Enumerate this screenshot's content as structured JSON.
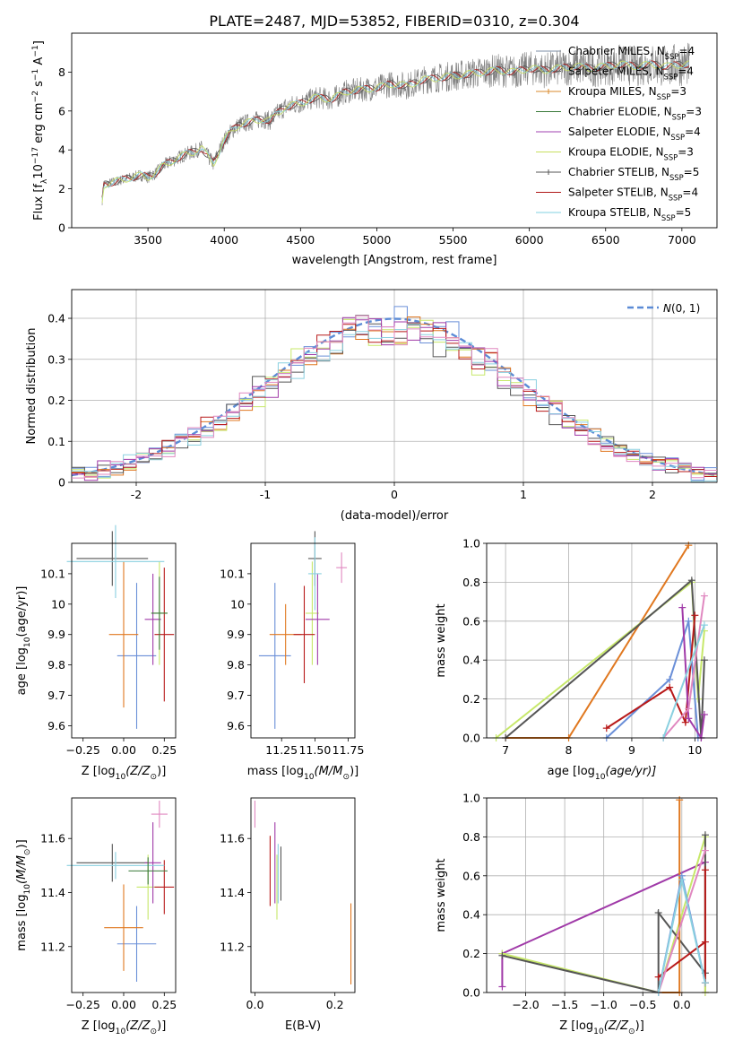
{
  "figure_title": "PLATE=2487, MJD=53852, FIBERID=0310, z=0.304",
  "colors": {
    "Chabrier MILES": "#7b8ea6",
    "Salpeter MILES": "#555555",
    "Kroupa MILES": "#d98a2b",
    "Chabrier ELODIE": "#3a7a3a",
    "Salpeter ELODIE": "#a040b0",
    "Kroupa ELODIE": "#c8e060",
    "Chabrier STELIB": "#555555",
    "Salpeter STELIB": "#b01818",
    "Kroupa STELIB": "#80d0e0",
    "spectrum": "#7f7f7f",
    "hist_set": [
      "#6a8fd8",
      "#e07820",
      "#c7e86a",
      "#555555",
      "#a03aa8",
      "#b81a1a",
      "#8ad0e0",
      "#e088c0"
    ],
    "gaussian": "#5b8bd6"
  },
  "chart_data": [
    {
      "id": "spectrum",
      "type": "line",
      "xlabel": "wavelength [Angstrom, rest frame]",
      "ylabel": "Flux [f",
      "ylabel_sub": "λ",
      "ylabel_rest": "10",
      "ylabel_exp": "−17",
      "ylabel_unit": " erg cm",
      "ylabel_unit_exp": "−2",
      "ylabel_s": " s",
      "ylabel_s_exp": "−1",
      "ylabel_A": " A",
      "ylabel_A_exp": "−1",
      "ylabel_close": "]",
      "xlim": [
        3000,
        7230
      ],
      "ylim": [
        0,
        10
      ],
      "xticks": [
        3500,
        4000,
        4500,
        5000,
        5500,
        6000,
        6500,
        7000
      ],
      "yticks": [
        0,
        2,
        4,
        6,
        8
      ],
      "legend_position": "right",
      "legend": [
        {
          "model": "Chabrier MILES",
          "n": "4"
        },
        {
          "model": "Salpeter MILES",
          "n": "4"
        },
        {
          "model": "Kroupa MILES",
          "n": "3"
        },
        {
          "model": "Chabrier ELODIE",
          "n": "3"
        },
        {
          "model": "Salpeter ELODIE",
          "n": "4"
        },
        {
          "model": "Kroupa ELODIE",
          "n": "3"
        },
        {
          "model": "Chabrier STELIB",
          "n": "5"
        },
        {
          "model": "Salpeter STELIB",
          "n": "4"
        },
        {
          "model": "Kroupa STELIB",
          "n": "5"
        }
      ],
      "legend_suffix_main": ", N",
      "legend_suffix_sub": "SSP",
      "legend_eq": "=",
      "x": [
        3200,
        3210,
        3250,
        3300,
        3350,
        3400,
        3450,
        3500,
        3550,
        3600,
        3650,
        3700,
        3750,
        3800,
        3850,
        3900,
        3930,
        3960,
        4000,
        4050,
        4100,
        4150,
        4200,
        4250,
        4300,
        4350,
        4400,
        4450,
        4500,
        4600,
        4700,
        4800,
        4900,
        5000,
        5100,
        5200,
        5300,
        5400,
        5500,
        5600,
        5700,
        5800,
        5900,
        6000,
        6100,
        6200,
        6300,
        6400,
        6500,
        6600,
        6700,
        6800,
        6900,
        7000,
        7050
      ],
      "y": [
        1.4,
        2.2,
        2.3,
        2.4,
        2.5,
        2.6,
        2.7,
        2.6,
        2.8,
        3.2,
        3.4,
        3.6,
        3.8,
        3.9,
        4.1,
        3.6,
        3.3,
        3.8,
        4.5,
        5.0,
        5.3,
        5.4,
        5.5,
        5.6,
        5.5,
        5.9,
        6.2,
        6.3,
        6.4,
        6.7,
        6.6,
        7.0,
        7.1,
        7.2,
        7.4,
        7.3,
        7.6,
        7.7,
        7.8,
        7.9,
        8.0,
        8.1,
        8.0,
        8.2,
        8.1,
        8.2,
        8.3,
        8.2,
        8.3,
        8.4,
        8.3,
        8.4,
        8.3,
        8.4,
        8.4
      ]
    },
    {
      "id": "residuals",
      "type": "histogram",
      "xlabel": "(data-model)/error",
      "ylabel": "Normed distribution",
      "xlim": [
        -2.5,
        2.5
      ],
      "ylim": [
        0,
        0.47
      ],
      "xticks": [
        -2,
        -1,
        0,
        1,
        2
      ],
      "yticks": [
        0.0,
        0.1,
        0.2,
        0.3,
        0.4
      ],
      "grid": true,
      "legend_position": "top-right",
      "legend_label": "N(0,1)",
      "bin_edges_start": -2.5,
      "bin_width": 0.1
    },
    {
      "id": "age-vs-Z",
      "type": "scatter",
      "xlabel": "Z [log",
      "xlabel_sub": "10",
      "xlabel_rest": "(Z/Z",
      "xlabel_sun": "⊙",
      "xlabel_close": ")]",
      "ylabel": "age  [log",
      "ylabel_sub": "10",
      "ylabel_rest": "(age/yr)]",
      "xlim": [
        -0.32,
        0.32
      ],
      "ylim": [
        9.56,
        10.2
      ],
      "xticks": [
        -0.25,
        0.0,
        0.25
      ],
      "xticklabels": [
        "−0.25",
        "0.00",
        "0.25"
      ],
      "yticks": [
        9.6,
        9.7,
        9.8,
        9.9,
        10.0,
        10.1
      ],
      "points": [
        {
          "x": 0.08,
          "y": 9.83,
          "xerr": 0.12,
          "yerr": 0.24,
          "color": "#6a8fd8"
        },
        {
          "x": 0.0,
          "y": 9.9,
          "xerr": 0.09,
          "yerr": 0.24,
          "color": "#e07820"
        },
        {
          "x": 0.22,
          "y": 9.97,
          "xerr": 0.05,
          "yerr": 0.17,
          "color": "#c7e86a"
        },
        {
          "x": -0.07,
          "y": 10.15,
          "xerr": 0.22,
          "yerr": 0.09,
          "color": "#555555"
        },
        {
          "x": 0.18,
          "y": 9.95,
          "xerr": 0.05,
          "yerr": 0.15,
          "color": "#a03aa8"
        },
        {
          "x": 0.25,
          "y": 9.9,
          "xerr": 0.06,
          "yerr": 0.22,
          "color": "#b81a1a"
        },
        {
          "x": -0.05,
          "y": 10.14,
          "xerr": 0.3,
          "yerr": 0.12,
          "color": "#8ad0e0"
        },
        {
          "x": 0.22,
          "y": 9.97,
          "xerr": 0.05,
          "yerr": 0.12,
          "color": "#3a7a3a"
        }
      ]
    },
    {
      "id": "age-vs-mass",
      "type": "scatter",
      "xlabel": "mass [log",
      "xlabel_sub": "10",
      "xlabel_rest": "(M/M",
      "xlabel_sun": "⊙",
      "xlabel_close": ")]",
      "xlim": [
        11.02,
        11.8
      ],
      "ylim": [
        9.56,
        10.2
      ],
      "xticks": [
        11.25,
        11.5,
        11.75
      ],
      "xticklabels": [
        "11.25",
        "11.50",
        "11.75"
      ],
      "yticks": [
        9.6,
        9.7,
        9.8,
        9.9,
        10.0,
        10.1
      ],
      "points": [
        {
          "x": 11.2,
          "y": 9.83,
          "xerr": 0.12,
          "yerr": 0.24,
          "color": "#6a8fd8"
        },
        {
          "x": 11.28,
          "y": 9.9,
          "xerr": 0.12,
          "yerr": 0.1,
          "color": "#e07820"
        },
        {
          "x": 11.48,
          "y": 9.97,
          "xerr": 0.05,
          "yerr": 0.17,
          "color": "#c7e86a"
        },
        {
          "x": 11.5,
          "y": 10.15,
          "xerr": 0.05,
          "yerr": 0.09,
          "color": "#555555"
        },
        {
          "x": 11.52,
          "y": 9.95,
          "xerr": 0.09,
          "yerr": 0.15,
          "color": "#a03aa8"
        },
        {
          "x": 11.42,
          "y": 9.9,
          "xerr": 0.08,
          "yerr": 0.16,
          "color": "#b81a1a"
        },
        {
          "x": 11.5,
          "y": 10.1,
          "xerr": 0.05,
          "yerr": 0.12,
          "color": "#8ad0e0"
        },
        {
          "x": 11.7,
          "y": 10.12,
          "xerr": 0.04,
          "yerr": 0.05,
          "color": "#e088c0"
        }
      ]
    },
    {
      "id": "mass-weight-vs-age",
      "type": "line",
      "xlabel": "age  [log",
      "xlabel_sub": "10",
      "xlabel_rest": "(age/yr)]",
      "ylabel": "mass weight",
      "xlim": [
        6.7,
        10.35
      ],
      "ylim": [
        0,
        1
      ],
      "xticks": [
        7,
        8,
        9,
        10
      ],
      "yticks": [
        0.0,
        0.2,
        0.4,
        0.6,
        0.8,
        1.0
      ],
      "yticklabels": [
        "0.0",
        "0.2",
        "0.4",
        "0.6",
        "0.8",
        "1.0"
      ],
      "grid": true,
      "series": [
        {
          "color": "#e07820",
          "x": [
            7.0,
            8.0,
            9.9
          ],
          "y": [
            0.0,
            0.0,
            0.99
          ]
        },
        {
          "color": "#c7e86a",
          "x": [
            6.85,
            9.95,
            10.05,
            10.15
          ],
          "y": [
            0.0,
            0.8,
            0.2,
            0.55
          ]
        },
        {
          "color": "#555555",
          "x": [
            7.0,
            9.95,
            10.1,
            10.15
          ],
          "y": [
            0.0,
            0.81,
            0.0,
            0.4
          ]
        },
        {
          "color": "#6a8fd8",
          "x": [
            8.6,
            9.6,
            9.9,
            10.05
          ],
          "y": [
            0.0,
            0.3,
            0.6,
            0.0
          ]
        },
        {
          "color": "#b81a1a",
          "x": [
            8.6,
            9.6,
            9.85,
            10.0
          ],
          "y": [
            0.05,
            0.26,
            0.08,
            0.63
          ]
        },
        {
          "color": "#a03aa8",
          "x": [
            9.8,
            9.9,
            10.1,
            10.15
          ],
          "y": [
            0.67,
            0.1,
            0.0,
            0.12
          ]
        },
        {
          "color": "#e088c0",
          "x": [
            9.5,
            9.9,
            10.15
          ],
          "y": [
            0.0,
            0.15,
            0.73
          ]
        },
        {
          "color": "#8ad0e0",
          "x": [
            9.5,
            10.15
          ],
          "y": [
            0.0,
            0.58
          ]
        }
      ]
    },
    {
      "id": "mass-vs-Z",
      "type": "scatter",
      "xlabel": "Z [log",
      "xlabel_sub": "10",
      "xlabel_rest": "(Z/Z",
      "xlabel_sun": "⊙",
      "xlabel_close": ")]",
      "ylabel": "mass [log",
      "ylabel_sub": "10",
      "ylabel_rest": "(M/M",
      "ylabel_sun": "⊙",
      "ylabel_close": ")]",
      "xlim": [
        -0.32,
        0.32
      ],
      "ylim": [
        11.03,
        11.75
      ],
      "xticks": [
        -0.25,
        0.0,
        0.25
      ],
      "xticklabels": [
        "−0.25",
        "0.00",
        "0.25"
      ],
      "yticks": [
        11.2,
        11.4,
        11.6
      ],
      "points": [
        {
          "x": 0.08,
          "y": 11.21,
          "xerr": 0.12,
          "yerr": 0.14,
          "color": "#6a8fd8"
        },
        {
          "x": 0.0,
          "y": 11.27,
          "xerr": 0.12,
          "yerr": 0.16,
          "color": "#e07820"
        },
        {
          "x": 0.15,
          "y": 11.42,
          "xerr": 0.07,
          "yerr": 0.12,
          "color": "#c7e86a"
        },
        {
          "x": -0.07,
          "y": 11.51,
          "xerr": 0.22,
          "yerr": 0.07,
          "color": "#555555"
        },
        {
          "x": 0.18,
          "y": 11.51,
          "xerr": 0.05,
          "yerr": 0.15,
          "color": "#a03aa8"
        },
        {
          "x": 0.25,
          "y": 11.42,
          "xerr": 0.06,
          "yerr": 0.1,
          "color": "#b81a1a"
        },
        {
          "x": -0.05,
          "y": 11.5,
          "xerr": 0.3,
          "yerr": 0.05,
          "color": "#8ad0e0"
        },
        {
          "x": 0.22,
          "y": 11.69,
          "xerr": 0.05,
          "yerr": 0.05,
          "color": "#e088c0"
        },
        {
          "x": 0.15,
          "y": 11.48,
          "xerr": 0.12,
          "yerr": 0.05,
          "color": "#3a7a3a"
        }
      ]
    },
    {
      "id": "mass-vs-ebv",
      "type": "scatter",
      "xlabel": "E(B-V)",
      "xlim": [
        -0.01,
        0.25
      ],
      "ylim": [
        11.03,
        11.75
      ],
      "xticks": [
        0.0,
        0.2
      ],
      "xticklabels": [
        "0.0",
        "0.2"
      ],
      "yticks": [
        11.2,
        11.4,
        11.6
      ],
      "points": [
        {
          "x": 0.0,
          "y": 11.69,
          "xerr": 0.0,
          "yerr": 0.05,
          "color": "#e088c0"
        },
        {
          "x": 0.038,
          "y": 11.48,
          "xerr": 0.0,
          "yerr": 0.13,
          "color": "#b81a1a"
        },
        {
          "x": 0.05,
          "y": 11.51,
          "xerr": 0.0,
          "yerr": 0.15,
          "color": "#a03aa8"
        },
        {
          "x": 0.055,
          "y": 11.42,
          "xerr": 0.0,
          "yerr": 0.12,
          "color": "#c7e86a"
        },
        {
          "x": 0.058,
          "y": 11.47,
          "xerr": 0.0,
          "yerr": 0.11,
          "color": "#8ad0e0"
        },
        {
          "x": 0.065,
          "y": 11.47,
          "xerr": 0.0,
          "yerr": 0.1,
          "color": "#555555"
        },
        {
          "x": 0.24,
          "y": 11.21,
          "xerr": 0.0,
          "yerr": 0.15,
          "color": "#e07820"
        }
      ]
    },
    {
      "id": "mass-weight-vs-Z",
      "type": "line",
      "xlabel": "Z [log",
      "xlabel_sub": "10",
      "xlabel_rest": "(Z/Z",
      "xlabel_sun": "⊙",
      "xlabel_close": ")]",
      "ylabel": "mass weight",
      "xlim": [
        -2.5,
        0.45
      ],
      "ylim": [
        0,
        1
      ],
      "xticks": [
        -2.0,
        -1.5,
        -1.0,
        -0.5,
        0.0
      ],
      "xticklabels": [
        "−2.0",
        "−1.5",
        "−1.0",
        "−0.5",
        "0.0"
      ],
      "yticks": [
        0.0,
        0.2,
        0.4,
        0.6,
        0.8,
        1.0
      ],
      "yticklabels": [
        "0.0",
        "0.2",
        "0.4",
        "0.6",
        "0.8",
        "1.0"
      ],
      "grid": true,
      "series": [
        {
          "color": "#a03aa8",
          "x": [
            -2.3,
            -2.3,
            0.3,
            0.3
          ],
          "y": [
            0.03,
            0.2,
            0.67,
            0.0
          ]
        },
        {
          "color": "#c7e86a",
          "x": [
            -2.3,
            -0.3,
            0.3,
            0.3
          ],
          "y": [
            0.2,
            0.0,
            0.8,
            0.0
          ]
        },
        {
          "color": "#555555",
          "x": [
            -2.3,
            -0.3,
            -0.3,
            0.3,
            0.3
          ],
          "y": [
            0.19,
            0.0,
            0.41,
            0.1,
            0.81
          ]
        },
        {
          "color": "#e07820",
          "x": [
            -0.3,
            -0.03,
            -0.03
          ],
          "y": [
            0.0,
            0.0,
            0.99
          ]
        },
        {
          "color": "#6a8fd8",
          "x": [
            -0.3,
            0.0,
            0.3
          ],
          "y": [
            0.0,
            0.6,
            0.05
          ]
        },
        {
          "color": "#b81a1a",
          "x": [
            -0.3,
            0.3,
            0.3,
            0.3
          ],
          "y": [
            0.08,
            0.26,
            0.63,
            0.05
          ]
        },
        {
          "color": "#e088c0",
          "x": [
            -0.3,
            0.3
          ],
          "y": [
            0.0,
            0.73
          ]
        },
        {
          "color": "#8ad0e0",
          "x": [
            -0.3,
            0.0,
            0.3
          ],
          "y": [
            0.0,
            0.58,
            0.05
          ]
        }
      ]
    }
  ]
}
